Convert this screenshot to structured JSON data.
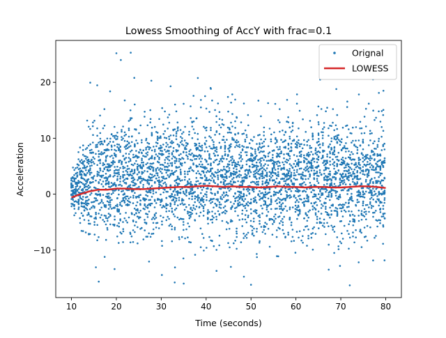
{
  "chart_data": {
    "type": "scatter",
    "title": "Lowess Smoothing of AccY with frac=0.1",
    "xlabel": "Time (seconds)",
    "ylabel": "Acceleration",
    "xlim": [
      6.5,
      83.5
    ],
    "ylim": [
      -18.5,
      27.5
    ],
    "xticks": [
      10,
      20,
      30,
      40,
      50,
      60,
      70,
      80
    ],
    "yticks": [
      -10,
      0,
      10,
      20
    ],
    "grid": false,
    "legend_position": "top-right",
    "legend": [
      {
        "label": "Orignal",
        "marker": "dot",
        "color": "#1f77b4"
      },
      {
        "label": "LOWESS",
        "marker": "line",
        "color": "#d62728"
      }
    ],
    "series": [
      {
        "name": "Orignal",
        "kind": "scatter",
        "color": "#1f77b4",
        "description": "raw AccY samples between t=10 and t=80 s, concentrated in vertical bands, roughly -16 to 25",
        "outliers": [
          {
            "x": 20.0,
            "y": 25.2
          },
          {
            "x": 23.2,
            "y": 25.3
          },
          {
            "x": 21.0,
            "y": 24.0
          },
          {
            "x": 24.0,
            "y": 20.8
          },
          {
            "x": 27.8,
            "y": 20.3
          },
          {
            "x": 41.0,
            "y": 19.0
          },
          {
            "x": 69.0,
            "y": 18.8
          },
          {
            "x": 79.5,
            "y": 18.5
          },
          {
            "x": 50.0,
            "y": -16.2
          },
          {
            "x": 72.0,
            "y": -16.3
          },
          {
            "x": 33.0,
            "y": -15.8
          },
          {
            "x": 35.0,
            "y": -16.0
          }
        ]
      },
      {
        "name": "LOWESS",
        "kind": "line",
        "color": "#d62728",
        "x": [
          10,
          12,
          14,
          16,
          18,
          20,
          22,
          24,
          26,
          28,
          30,
          32,
          34,
          36,
          38,
          40,
          42,
          44,
          46,
          48,
          50,
          52,
          54,
          56,
          58,
          60,
          62,
          64,
          66,
          68,
          70,
          72,
          74,
          76,
          78,
          80
        ],
        "y": [
          -0.6,
          0.0,
          0.5,
          0.8,
          0.8,
          1.0,
          1.0,
          0.9,
          0.9,
          1.0,
          1.1,
          1.2,
          1.3,
          1.3,
          1.4,
          1.5,
          1.4,
          1.3,
          1.4,
          1.3,
          1.3,
          1.2,
          1.3,
          1.4,
          1.3,
          1.3,
          1.2,
          1.3,
          1.3,
          1.2,
          1.2,
          1.3,
          1.4,
          1.4,
          1.3,
          1.1
        ]
      }
    ]
  }
}
